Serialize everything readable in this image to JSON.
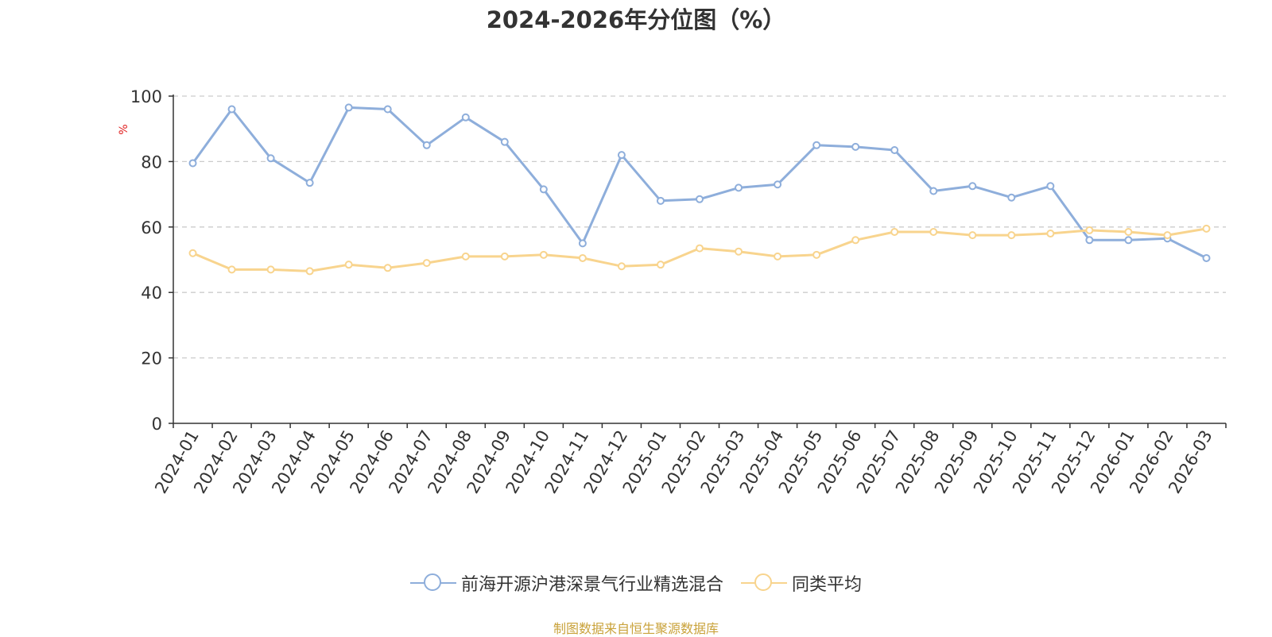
{
  "chart_data": {
    "type": "line",
    "title": "2024-2026年分位图（%）",
    "ylabel": "%",
    "xlabel": "",
    "ylim": [
      0,
      100
    ],
    "yticks": [
      0,
      20,
      40,
      60,
      80,
      100
    ],
    "grid": true,
    "legend_position": "bottom-center",
    "categories": [
      "2024-01",
      "2024-02",
      "2024-03",
      "2024-04",
      "2024-05",
      "2024-06",
      "2024-07",
      "2024-08",
      "2024-09",
      "2024-10",
      "2024-11",
      "2024-12",
      "2025-01",
      "2025-02",
      "2025-03",
      "2025-04",
      "2025-05",
      "2025-06",
      "2025-07",
      "2025-08",
      "2025-09",
      "2025-10",
      "2025-11",
      "2025-12",
      "2026-01",
      "2026-02",
      "2026-03"
    ],
    "series": [
      {
        "name": "前海开源沪港深景气行业精选混合",
        "color": "#8eaedb",
        "values": [
          79.5,
          96,
          81,
          73.5,
          96.5,
          96,
          85,
          93.5,
          86,
          71.5,
          55,
          82,
          68,
          68.5,
          72,
          73,
          85,
          84.5,
          83.5,
          71,
          72.5,
          69,
          72.5,
          56,
          56,
          56.5,
          50.5
        ]
      },
      {
        "name": "同类平均",
        "color": "#f8d48e",
        "values": [
          52,
          47,
          47,
          46.5,
          48.5,
          47.5,
          49,
          51,
          51,
          51.5,
          50.5,
          48,
          48.5,
          53.5,
          52.5,
          51,
          51.5,
          56,
          58.5,
          58.5,
          57.5,
          57.5,
          58,
          59,
          58.5,
          57.5,
          59.5
        ]
      }
    ]
  },
  "source_text": "制图数据来自恒生聚源数据库"
}
